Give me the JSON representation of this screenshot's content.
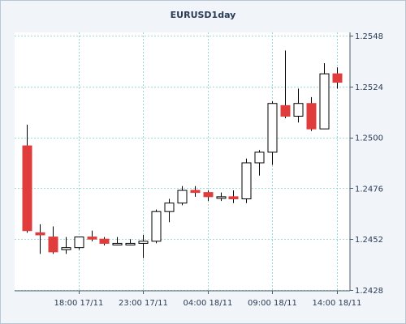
{
  "chart_data": {
    "type": "candlestick",
    "title": "EURUSD1day",
    "xlabel": "",
    "ylabel": "",
    "ylim": [
      1.2428,
      1.2548
    ],
    "y_ticks": [
      "1.2548",
      "1.2524",
      "1.2500",
      "1.2476",
      "1.2452",
      "1.2428"
    ],
    "x_tick_labels": [
      "18:00 17/11",
      "23:00 17/11",
      "04:00 18/11",
      "09:00 18/11",
      "14:00 18/11"
    ],
    "grid": true,
    "colors": {
      "up_body": "#ffffff",
      "down_body": "#e03c3c",
      "wick": "#000000",
      "grid": "#7fcfcf"
    },
    "candles": [
      {
        "open": 1.2496,
        "high": 1.2506,
        "low": 1.2455,
        "close": 1.2456
      },
      {
        "open": 1.2455,
        "high": 1.2459,
        "low": 1.2445,
        "close": 1.2454
      },
      {
        "open": 1.2453,
        "high": 1.2458,
        "low": 1.2445,
        "close": 1.2446
      },
      {
        "open": 1.2447,
        "high": 1.2453,
        "low": 1.2445,
        "close": 1.2448
      },
      {
        "open": 1.2448,
        "high": 1.2453,
        "low": 1.2447,
        "close": 1.2453
      },
      {
        "open": 1.2453,
        "high": 1.2456,
        "low": 1.2451,
        "close": 1.2452
      },
      {
        "open": 1.2452,
        "high": 1.2453,
        "low": 1.2449,
        "close": 1.245
      },
      {
        "open": 1.245,
        "high": 1.2453,
        "low": 1.2449,
        "close": 1.245
      },
      {
        "open": 1.245,
        "high": 1.2452,
        "low": 1.2449,
        "close": 1.245
      },
      {
        "open": 1.245,
        "high": 1.2454,
        "low": 1.2443,
        "close": 1.2451
      },
      {
        "open": 1.2451,
        "high": 1.2466,
        "low": 1.245,
        "close": 1.2465
      },
      {
        "open": 1.2465,
        "high": 1.2471,
        "low": 1.246,
        "close": 1.2469
      },
      {
        "open": 1.2469,
        "high": 1.2477,
        "low": 1.2468,
        "close": 1.2475
      },
      {
        "open": 1.2475,
        "high": 1.2477,
        "low": 1.2472,
        "close": 1.2474
      },
      {
        "open": 1.2474,
        "high": 1.2475,
        "low": 1.247,
        "close": 1.2472
      },
      {
        "open": 1.2472,
        "high": 1.2474,
        "low": 1.247,
        "close": 1.2472
      },
      {
        "open": 1.2472,
        "high": 1.2475,
        "low": 1.2469,
        "close": 1.2471
      },
      {
        "open": 1.2471,
        "high": 1.249,
        "low": 1.2469,
        "close": 1.2488
      },
      {
        "open": 1.2488,
        "high": 1.2494,
        "low": 1.2482,
        "close": 1.2493
      },
      {
        "open": 1.2493,
        "high": 1.2517,
        "low": 1.2487,
        "close": 1.2516
      },
      {
        "open": 1.2515,
        "high": 1.2541,
        "low": 1.2509,
        "close": 1.251
      },
      {
        "open": 1.251,
        "high": 1.2523,
        "low": 1.2507,
        "close": 1.2516
      },
      {
        "open": 1.2516,
        "high": 1.2519,
        "low": 1.2503,
        "close": 1.2504
      },
      {
        "open": 1.2504,
        "high": 1.2535,
        "low": 1.2504,
        "close": 1.253
      },
      {
        "open": 1.253,
        "high": 1.2533,
        "low": 1.2523,
        "close": 1.2526
      }
    ]
  }
}
